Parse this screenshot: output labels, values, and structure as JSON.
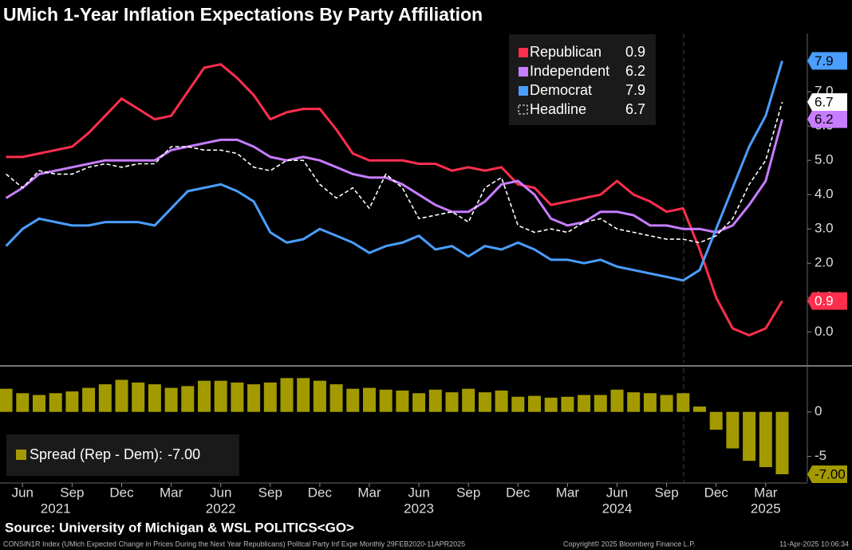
{
  "chart_data": [
    {
      "type": "line",
      "title": "UMich 1-Year Inflation Expectations By Party Affiliation",
      "ylim": [
        -0.9,
        8.7
      ],
      "yticks": [
        {
          "value": 0,
          "label": "0.0"
        },
        {
          "value": 1,
          "label": "1.0"
        },
        {
          "value": 2,
          "label": "2.0"
        },
        {
          "value": 3,
          "label": "3.0"
        },
        {
          "value": 4,
          "label": "4.0"
        },
        {
          "value": 5,
          "label": "5.0"
        },
        {
          "value": 6,
          "label": "6.0"
        },
        {
          "value": 7,
          "label": "7.0"
        }
      ],
      "grid": false,
      "series": [
        {
          "name": "Republican",
          "color": "#ff2e4d",
          "dashed": false,
          "values": [
            5.1,
            5.1,
            5.2,
            5.3,
            5.4,
            5.8,
            6.3,
            6.8,
            6.5,
            6.2,
            6.3,
            7.0,
            7.7,
            7.8,
            7.4,
            6.9,
            6.2,
            6.4,
            6.5,
            6.5,
            5.9,
            5.2,
            5.0,
            5.0,
            5.0,
            4.9,
            4.9,
            4.7,
            4.8,
            4.7,
            4.8,
            4.3,
            4.2,
            3.7,
            3.8,
            3.9,
            4.0,
            4.4,
            4.0,
            3.8,
            3.5,
            3.6,
            2.4,
            1.0,
            0.1,
            -0.1,
            0.1,
            0.9
          ]
        },
        {
          "name": "Independent",
          "color": "#c77dff",
          "dashed": false,
          "values": [
            3.9,
            4.2,
            4.6,
            4.7,
            4.8,
            4.9,
            5.0,
            5.0,
            5.0,
            5.0,
            5.3,
            5.4,
            5.5,
            5.6,
            5.6,
            5.4,
            5.1,
            5.0,
            5.1,
            5.0,
            4.8,
            4.6,
            4.5,
            4.5,
            4.3,
            4.0,
            3.7,
            3.5,
            3.5,
            3.8,
            4.3,
            4.4,
            4.0,
            3.3,
            3.1,
            3.2,
            3.5,
            3.5,
            3.4,
            3.1,
            3.1,
            3.0,
            3.0,
            2.9,
            3.1,
            3.7,
            4.4,
            6.2
          ]
        },
        {
          "name": "Democrat",
          "color": "#4a9eff",
          "dashed": false,
          "values": [
            2.5,
            3.0,
            3.3,
            3.2,
            3.1,
            3.1,
            3.2,
            3.2,
            3.2,
            3.1,
            3.6,
            4.1,
            4.2,
            4.3,
            4.1,
            3.8,
            2.9,
            2.6,
            2.7,
            3.0,
            2.8,
            2.6,
            2.3,
            2.5,
            2.6,
            2.8,
            2.4,
            2.5,
            2.2,
            2.5,
            2.4,
            2.6,
            2.4,
            2.1,
            2.1,
            2.0,
            2.1,
            1.9,
            1.8,
            1.7,
            1.6,
            1.5,
            1.8,
            3.0,
            4.2,
            5.4,
            6.3,
            7.9
          ]
        },
        {
          "name": "Headline",
          "color": "#ffffff",
          "dashed": true,
          "values": [
            4.6,
            4.2,
            4.7,
            4.6,
            4.6,
            4.8,
            4.9,
            4.8,
            4.9,
            4.9,
            5.4,
            5.4,
            5.3,
            5.3,
            5.2,
            4.8,
            4.7,
            5.0,
            5.0,
            4.3,
            3.9,
            4.2,
            3.6,
            4.6,
            4.2,
            3.3,
            3.4,
            3.5,
            3.2,
            4.2,
            4.5,
            3.1,
            2.9,
            3.0,
            2.9,
            3.2,
            3.3,
            3.0,
            2.9,
            2.8,
            2.7,
            2.7,
            2.6,
            2.8,
            3.3,
            4.3,
            5.0,
            6.7
          ]
        }
      ]
    },
    {
      "type": "bar",
      "categories": [
        null,
        "Jun",
        null,
        null,
        "Sep",
        null,
        null,
        "Dec",
        null,
        null,
        "Mar",
        null,
        null,
        "Jun",
        null,
        null,
        "Sep",
        null,
        null,
        "Dec",
        null,
        null,
        "Mar",
        null,
        null,
        "Jun",
        null,
        null,
        "Sep",
        null,
        null,
        "Dec",
        null,
        null,
        "Mar",
        null,
        null,
        "Jun",
        null,
        null,
        "Sep",
        null,
        null,
        "Dec",
        null,
        null,
        "Mar",
        null
      ],
      "year_categories": [
        null,
        null,
        null,
        "2021",
        null,
        null,
        null,
        null,
        null,
        null,
        null,
        null,
        null,
        "2022",
        null,
        null,
        null,
        null,
        null,
        null,
        null,
        null,
        null,
        null,
        null,
        "2023",
        null,
        null,
        null,
        null,
        null,
        null,
        null,
        null,
        null,
        null,
        null,
        "2024",
        null,
        null,
        null,
        null,
        null,
        null,
        null,
        null,
        "2025",
        null
      ],
      "ylim": [
        -7.9,
        4.9
      ],
      "yticks": [
        0,
        -5
      ],
      "series": [
        {
          "name": "Spread (Rep - Dem):",
          "color": "#a39a00",
          "values": [
            2.6,
            2.1,
            1.9,
            2.1,
            2.3,
            2.7,
            3.1,
            3.6,
            3.3,
            3.1,
            2.7,
            2.9,
            3.5,
            3.5,
            3.3,
            3.1,
            3.3,
            3.8,
            3.8,
            3.5,
            3.1,
            2.6,
            2.7,
            2.5,
            2.4,
            2.1,
            2.5,
            2.2,
            2.6,
            2.2,
            2.4,
            1.7,
            1.8,
            1.6,
            1.7,
            1.9,
            1.9,
            2.5,
            2.2,
            2.1,
            1.9,
            2.1,
            0.6,
            -2.0,
            -4.1,
            -5.5,
            -6.2,
            -7.0
          ],
          "value_labels": [
            null,
            null,
            null,
            null,
            null,
            null,
            null,
            null,
            null,
            null,
            null,
            null,
            null,
            null,
            null,
            null,
            null,
            null,
            null,
            null,
            null,
            null,
            null,
            null,
            null,
            null,
            null,
            null,
            null,
            null,
            null,
            null,
            null,
            null,
            null,
            null,
            null,
            null,
            null,
            null,
            null,
            null,
            null,
            null,
            null,
            null,
            null,
            "-7.00"
          ]
        }
      ]
    }
  ],
  "footer": {
    "source": "Source: University of Michigan & WSL POLITICS<GO>",
    "description": "CONSIN1R Index (UMich Expected Change in Prices During the Next Year Republicans) Politcal Party Inf Expe  Monthly 29FEB2020-11APR2025",
    "copyright": "Copyright© 2025 Bloomberg Finance L.P.",
    "timestamp": "11-Apr-2025 10:06:34"
  }
}
